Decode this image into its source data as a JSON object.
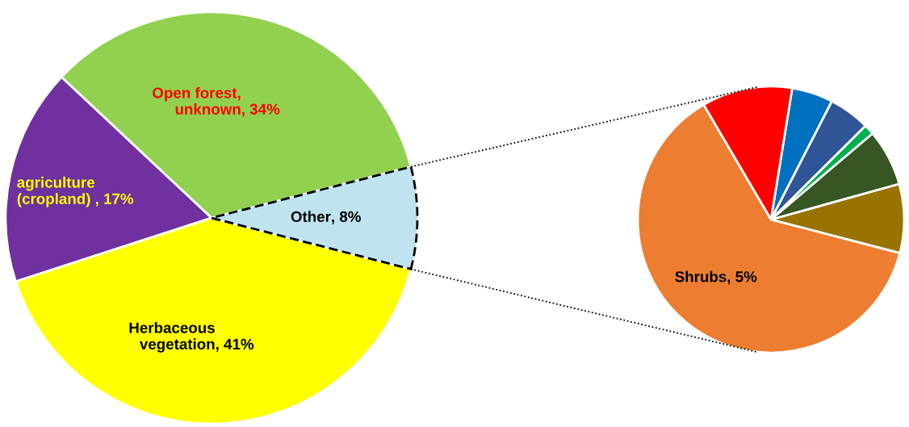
{
  "chart_data": [
    {
      "type": "pie",
      "categories": [
        "Other",
        "Open forest,\nunknown",
        "agriculture\n(cropland) ",
        "Herbaceous\nvegetation"
      ],
      "values": [
        8,
        34,
        17,
        41
      ],
      "colors": [
        "#bfe4f0",
        "#92d050",
        "#7030a0",
        "#ffff00"
      ],
      "value_labels": [
        ", 8%",
        ", 34%",
        ", 17%",
        ", 41%"
      ]
    },
    {
      "type": "pie",
      "categories": [
        null,
        null,
        null,
        null,
        null,
        null,
        "Shrubs"
      ],
      "values": [
        0.67,
        0.55,
        0.1,
        0.4,
        0.4,
        0.88,
        5
      ],
      "colors": [
        "#997300",
        "#375623",
        "#00b050",
        "#2f5597",
        "#0070c0",
        "#ff0000",
        "#ed7d31"
      ],
      "value_labels": [
        null,
        null,
        null,
        null,
        null,
        null,
        ", 5%"
      ]
    }
  ]
}
